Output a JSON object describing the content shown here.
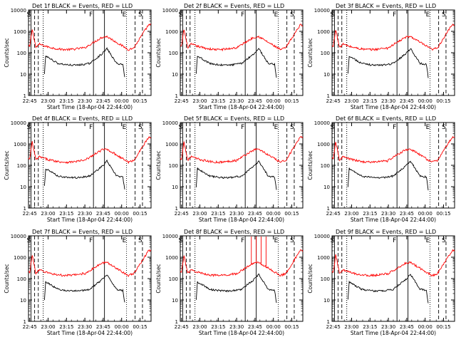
{
  "chart_data": [
    {
      "type": "line",
      "title": "Det 1f BLACK = Events, RED = LLD"
    },
    {
      "type": "line",
      "title": "Det 2f BLACK = Events, RED = LLD"
    },
    {
      "type": "line",
      "title": "Det 3f BLACK = Events, RED = LLD"
    },
    {
      "type": "line",
      "title": "Det 4f BLACK = Events, RED = LLD"
    },
    {
      "type": "line",
      "title": "Det 5f BLACK = Events, RED = LLD"
    },
    {
      "type": "line",
      "title": "Det 6f BLACK = Events, RED = LLD"
    },
    {
      "type": "line",
      "title": "Det 7f BLACK = Events, RED = LLD"
    },
    {
      "type": "line",
      "title": "Det 8f BLACK = Events, RED = LLD"
    },
    {
      "type": "line",
      "title": "Det 9f BLACK = Events, RED = LLD"
    }
  ],
  "shared": {
    "xlabel": "Start Time (18-Apr-04 22:44:00)",
    "ylabel": "Counts/sec",
    "xticks": [
      "22:45",
      "23:00",
      "23:15",
      "23:30",
      "23:45",
      "00:00",
      "00:15"
    ],
    "xtick_minutes": [
      1,
      16,
      31,
      46,
      61,
      76,
      91
    ],
    "xlim_minutes": [
      0,
      100
    ],
    "yticks": [
      "1",
      "10",
      "100",
      "1000",
      "10000"
    ],
    "ylim": [
      1,
      10000
    ],
    "yscale": "log",
    "series": [
      {
        "name": "Events",
        "color": "#000000"
      },
      {
        "name": "LLD",
        "color": "#ff0000"
      }
    ],
    "markers": [
      {
        "label": "S",
        "minute": 2,
        "style": "solid"
      },
      {
        "label": "",
        "minute": 5,
        "style": "dashed"
      },
      {
        "label": "",
        "minute": 8,
        "style": "dashed"
      },
      {
        "label": "",
        "minute": 12,
        "style": "dotted"
      },
      {
        "label": "",
        "minute": 12,
        "style": "dotted"
      },
      {
        "label": "F",
        "minute": 53,
        "style": "solid"
      },
      {
        "label": "",
        "minute": 62,
        "style": "solid"
      },
      {
        "label": "E",
        "minute": 80,
        "style": "dotted"
      },
      {
        "label": "",
        "minute": 87,
        "style": "dashed"
      },
      {
        "label": "S",
        "minute": 93,
        "style": "dashed"
      }
    ]
  }
}
